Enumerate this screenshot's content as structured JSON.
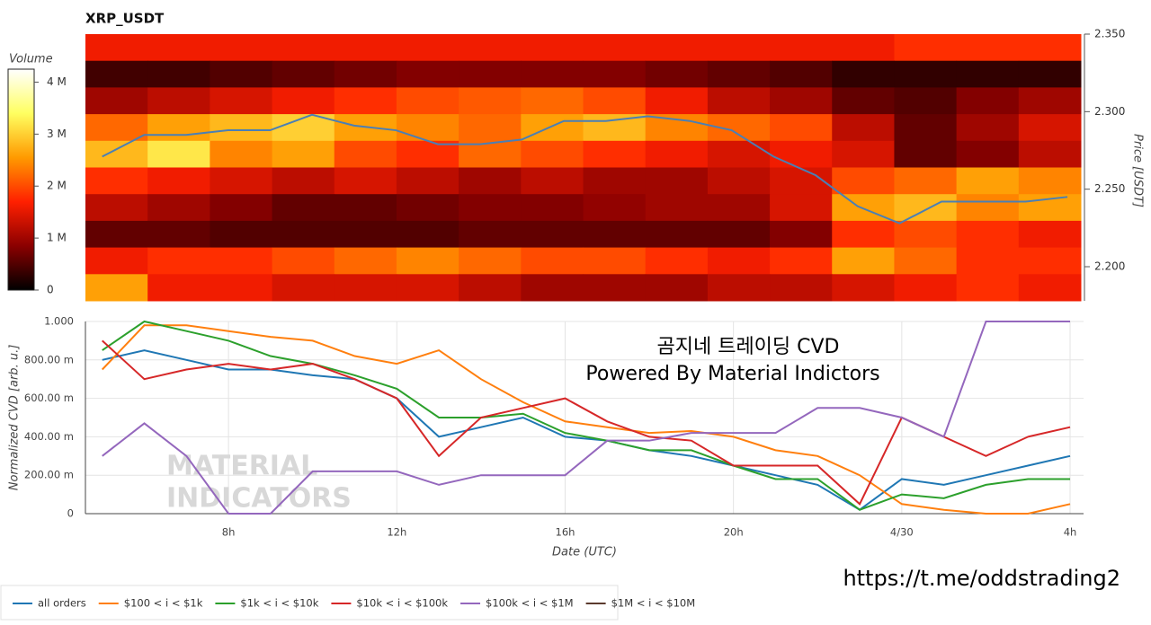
{
  "chart_data": [
    {
      "type": "heatmap",
      "title": "XRP_USDT",
      "colorbar_label": "Volume",
      "ylabel": "Price [USDT]",
      "zlim": [
        0,
        4250000
      ],
      "zticks": [
        {
          "value": 0,
          "label": "0"
        },
        {
          "value": 1000000,
          "label": "1 M"
        },
        {
          "value": 2000000,
          "label": "2 M"
        },
        {
          "value": 3000000,
          "label": "3 M"
        },
        {
          "value": 4000000,
          "label": "4 M"
        }
      ],
      "colorscale": [
        "#000000",
        "#8b0000",
        "#ff2000",
        "#ff9a00",
        "#ffff60",
        "#ffffff"
      ],
      "xlim": [
        4.6,
        28.32
      ],
      "ylim": [
        2.178,
        2.35
      ],
      "yticks": [
        {
          "value": 2.2,
          "label": "2.200"
        },
        {
          "value": 2.25,
          "label": "2.250"
        },
        {
          "value": 2.3,
          "label": "2.300"
        },
        {
          "value": 2.35,
          "label": "2.350"
        }
      ],
      "z": [
        [
          1600000,
          1600000,
          1600000,
          1600000,
          1600000,
          1600000,
          1600000,
          1600000,
          1600000,
          1600000,
          1600000,
          1600000,
          1600000,
          1800000,
          1800000,
          1800000
        ],
        [
          400000,
          400000,
          500000,
          600000,
          700000,
          800000,
          800000,
          800000,
          800000,
          700000,
          600000,
          500000,
          300000,
          300000,
          300000,
          300000
        ],
        [
          1000000,
          1200000,
          1400000,
          1600000,
          1800000,
          2000000,
          2100000,
          2200000,
          2000000,
          1600000,
          1200000,
          1000000,
          600000,
          500000,
          800000,
          1000000
        ],
        [
          2200000,
          2600000,
          2800000,
          3000000,
          2600000,
          2400000,
          2200000,
          2600000,
          2800000,
          2400000,
          2200000,
          2000000,
          1200000,
          600000,
          1000000,
          1400000
        ],
        [
          2800000,
          3200000,
          2400000,
          2600000,
          2000000,
          1800000,
          2200000,
          2000000,
          1800000,
          1600000,
          1400000,
          1600000,
          1400000,
          600000,
          800000,
          1200000
        ],
        [
          1800000,
          1600000,
          1400000,
          1200000,
          1400000,
          1200000,
          1000000,
          1200000,
          1000000,
          1000000,
          1200000,
          1400000,
          2000000,
          2200000,
          2600000,
          2400000
        ],
        [
          1200000,
          1000000,
          800000,
          600000,
          600000,
          700000,
          800000,
          800000,
          900000,
          1000000,
          1000000,
          1400000,
          2600000,
          2800000,
          2400000,
          2600000
        ],
        [
          600000,
          600000,
          500000,
          500000,
          500000,
          500000,
          600000,
          600000,
          600000,
          600000,
          600000,
          800000,
          1800000,
          2000000,
          1800000,
          1600000
        ],
        [
          1600000,
          1800000,
          1800000,
          2000000,
          2200000,
          2400000,
          2200000,
          2000000,
          2000000,
          1800000,
          1600000,
          1800000,
          2600000,
          2200000,
          1800000,
          1800000
        ],
        [
          2600000,
          1600000,
          1600000,
          1400000,
          1400000,
          1400000,
          1200000,
          1000000,
          1000000,
          1000000,
          1200000,
          1200000,
          1400000,
          1600000,
          1800000,
          1600000
        ]
      ],
      "x": [
        5,
        6,
        7,
        8,
        9,
        10,
        11,
        12,
        13,
        14,
        15,
        16,
        17,
        18,
        19,
        20,
        21,
        22,
        23,
        24,
        25,
        26,
        27,
        28
      ],
      "price": {
        "color": "#4a7fb5",
        "values": [
          2.271,
          2.285,
          2.285,
          2.288,
          2.288,
          2.298,
          2.291,
          2.288,
          2.279,
          2.279,
          2.282,
          2.294,
          2.294,
          2.297,
          2.294,
          2.288,
          2.271,
          2.259,
          2.239,
          2.228,
          2.242,
          2.242,
          2.242,
          2.245
        ]
      }
    },
    {
      "type": "line",
      "ylabel": "Normalized CVD [arb. u.]",
      "xlabel": "Date (UTC)",
      "annotations": [
        "곰지네 트레이딩 CVD",
        "Powered By Material Indictors"
      ],
      "watermark": [
        "MATERIAL",
        "INDICATORS"
      ],
      "footer": "https://t.me/oddstrading2",
      "xlim": [
        4.6,
        28.32
      ],
      "xticks": [
        {
          "value": 8,
          "label": "8h"
        },
        {
          "value": 12,
          "label": "12h"
        },
        {
          "value": 16,
          "label": "16h"
        },
        {
          "value": 20,
          "label": "20h"
        },
        {
          "value": 24,
          "label": "4/30"
        },
        {
          "value": 28,
          "label": "4h"
        }
      ],
      "ylim": [
        0,
        1
      ],
      "yticks": [
        0,
        {
          "value": 0.2,
          "label": "200.00 m"
        },
        {
          "value": 0.4,
          "label": "400.00 m"
        },
        {
          "value": 0.6,
          "label": "600.00 m"
        },
        {
          "value": 0.8,
          "label": "800.00 m"
        },
        {
          "value": 1,
          "label": "1.000"
        }
      ],
      "grid": true,
      "x": [
        5,
        6,
        7,
        8,
        9,
        10,
        11,
        12,
        13,
        14,
        15,
        16,
        17,
        18,
        19,
        20,
        21,
        22,
        23,
        24,
        25,
        26,
        27,
        28
      ],
      "series": [
        {
          "name": "all orders",
          "color": "#1f77b4",
          "values": [
            0.8,
            0.85,
            0.8,
            0.75,
            0.75,
            0.72,
            0.7,
            0.6,
            0.4,
            0.45,
            0.5,
            0.4,
            0.38,
            0.33,
            0.3,
            0.25,
            0.2,
            0.15,
            0.02,
            0.18,
            0.15,
            0.2,
            0.25,
            0.3
          ]
        },
        {
          "name": "$100 < i < $1k",
          "color": "#ff7f0e",
          "values": [
            0.75,
            0.98,
            0.98,
            0.95,
            0.92,
            0.9,
            0.82,
            0.78,
            0.85,
            0.7,
            0.58,
            0.48,
            0.45,
            0.42,
            0.43,
            0.4,
            0.33,
            0.3,
            0.2,
            0.05,
            0.02,
            0,
            0,
            0.05
          ]
        },
        {
          "name": "$1k < i < $10k",
          "color": "#2ca02c",
          "values": [
            0.85,
            1,
            0.95,
            0.9,
            0.82,
            0.78,
            0.72,
            0.65,
            0.5,
            0.5,
            0.52,
            0.42,
            0.38,
            0.33,
            0.33,
            0.25,
            0.18,
            0.18,
            0.02,
            0.1,
            0.08,
            0.15,
            0.18,
            0.18
          ]
        },
        {
          "name": "$10k < i < $100k",
          "color": "#d62728",
          "values": [
            0.9,
            0.7,
            0.75,
            0.78,
            0.75,
            0.78,
            0.7,
            0.6,
            0.3,
            0.5,
            0.55,
            0.6,
            0.48,
            0.4,
            0.38,
            0.25,
            0.25,
            0.25,
            0.05,
            0.5,
            0.4,
            0.3,
            0.4,
            0.45
          ]
        },
        {
          "name": "$100k < i < $1M",
          "color": "#9467bd",
          "values": [
            0.3,
            0.47,
            0.3,
            0,
            0,
            0.22,
            0.22,
            0.22,
            0.15,
            0.2,
            0.2,
            0.2,
            0.38,
            0.38,
            0.42,
            0.42,
            0.42,
            0.55,
            0.55,
            0.5,
            0.4,
            1,
            1,
            1
          ]
        },
        {
          "name": "$1M < i < $10M",
          "color": "#5b3a2e",
          "values": [
            null,
            null,
            null,
            null,
            null,
            null,
            null,
            null,
            null,
            null,
            null,
            null,
            null,
            null,
            null,
            null,
            null,
            null,
            null,
            null,
            null,
            null,
            null,
            null
          ]
        }
      ]
    }
  ]
}
